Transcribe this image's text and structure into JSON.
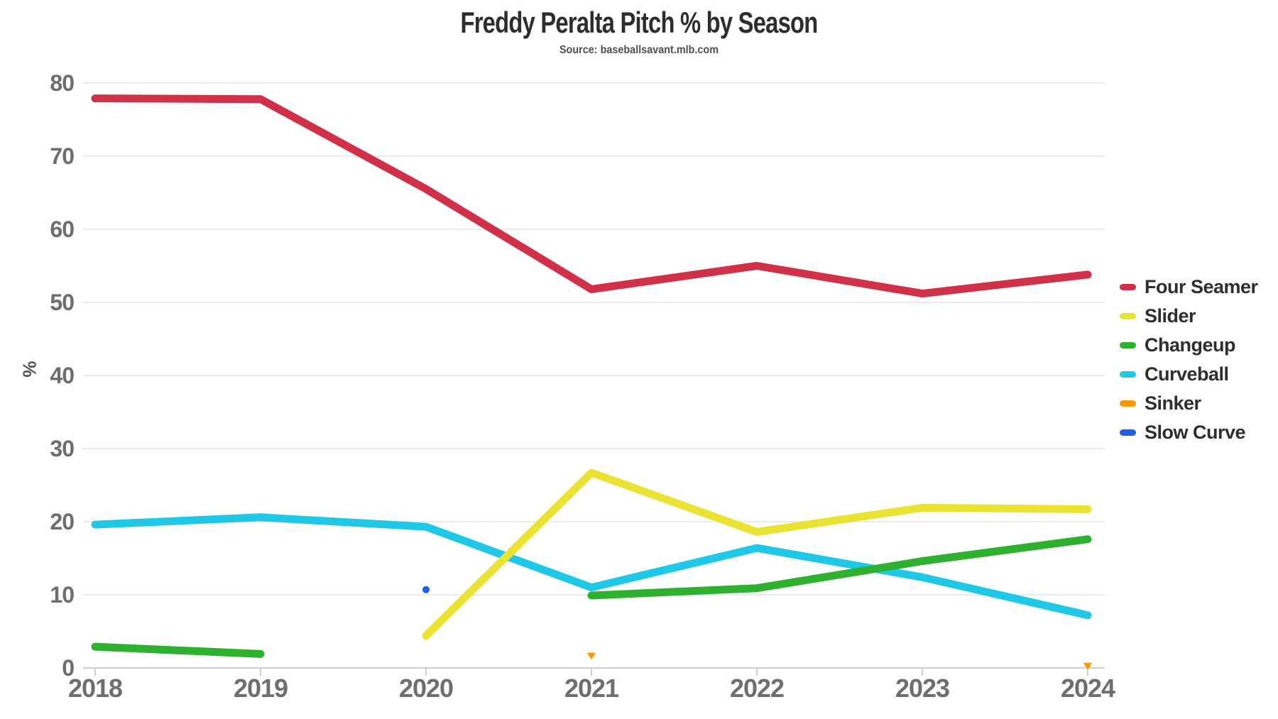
{
  "chart_data": {
    "type": "line",
    "title": "Freddy Peralta Pitch % by Season",
    "subtitle": "Source: baseballsavant.mlb.com",
    "xlabel": "",
    "ylabel": "%",
    "categories": [
      "2018",
      "2019",
      "2020",
      "2021",
      "2022",
      "2023",
      "2024"
    ],
    "yticks": [
      0,
      10,
      20,
      30,
      40,
      50,
      60,
      70,
      80
    ],
    "ylim": [
      0,
      80
    ],
    "grid": true,
    "legend_position": "right",
    "series": [
      {
        "name": "Four Seamer",
        "color": "#d13049",
        "marker": "none",
        "values": [
          77.9,
          77.8,
          65.5,
          51.8,
          55.0,
          51.2,
          53.8
        ]
      },
      {
        "name": "Slider",
        "color": "#ebe332",
        "marker": "none",
        "values": [
          null,
          null,
          4.4,
          26.7,
          18.6,
          21.9,
          21.7
        ]
      },
      {
        "name": "Changeup",
        "color": "#2eb12e",
        "marker": "none",
        "values": [
          2.9,
          1.9,
          null,
          9.9,
          10.9,
          14.6,
          17.6
        ]
      },
      {
        "name": "Curveball",
        "color": "#20c8e8",
        "marker": "none",
        "values": [
          19.6,
          20.6,
          19.3,
          11.0,
          16.4,
          12.4,
          7.2
        ]
      },
      {
        "name": "Sinker",
        "color": "#f99803",
        "marker": "triangle-down",
        "values": [
          null,
          null,
          null,
          1.7,
          null,
          null,
          0.3
        ]
      },
      {
        "name": "Slow Curve",
        "color": "#1c5fe5",
        "marker": "circle",
        "values": [
          null,
          null,
          10.7,
          null,
          null,
          null,
          null
        ]
      }
    ]
  }
}
